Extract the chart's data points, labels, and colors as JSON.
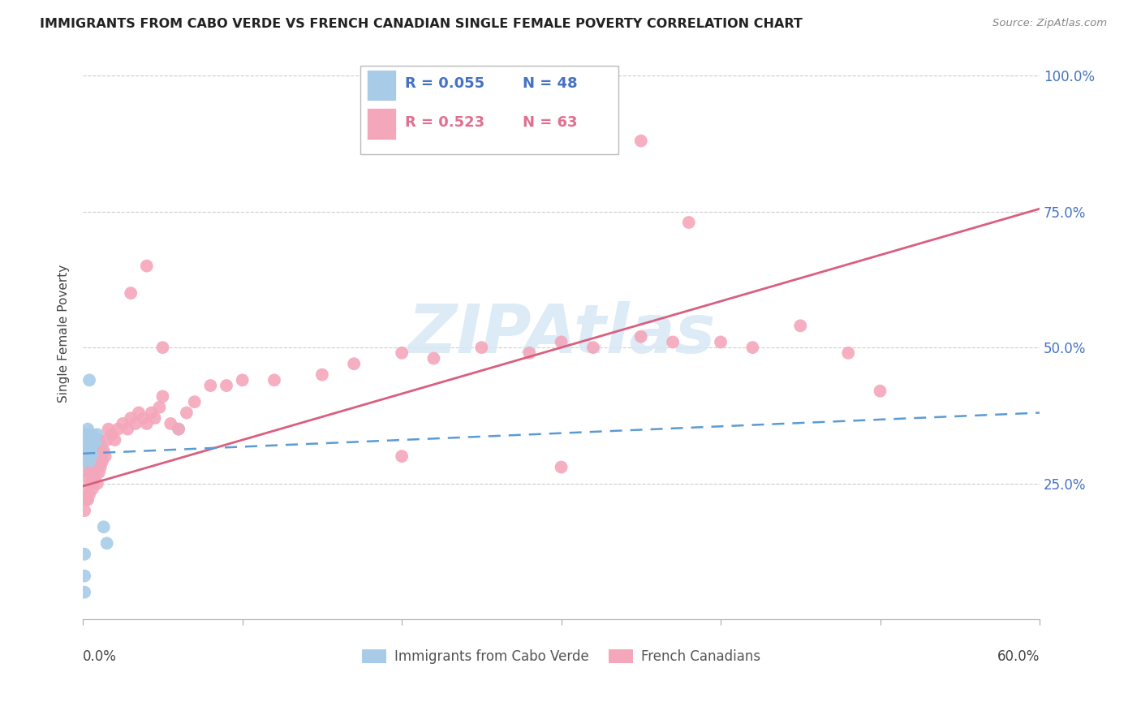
{
  "title": "IMMIGRANTS FROM CABO VERDE VS FRENCH CANADIAN SINGLE FEMALE POVERTY CORRELATION CHART",
  "source": "Source: ZipAtlas.com",
  "ylabel": "Single Female Poverty",
  "xmin": 0.0,
  "xmax": 0.6,
  "ymin": 0.0,
  "ymax": 1.05,
  "yticks": [
    0.0,
    0.25,
    0.5,
    0.75,
    1.0
  ],
  "ytick_labels": [
    "",
    "25.0%",
    "50.0%",
    "75.0%",
    "100.0%"
  ],
  "legend_blue_r": "R = 0.055",
  "legend_blue_n": "N = 48",
  "legend_pink_r": "R = 0.523",
  "legend_pink_n": "N = 63",
  "blue_scatter_color": "#a8cce8",
  "pink_scatter_color": "#f4a7bb",
  "blue_line_color": "#5b9bd5",
  "pink_line_color": "#d95f7f",
  "blue_legend_color": "#a8cce8",
  "pink_legend_color": "#f4a7bb",
  "grid_color": "#cccccc",
  "watermark_color": "#d6e8f5",
  "blue_x": [
    0.001,
    0.001,
    0.001,
    0.001,
    0.002,
    0.002,
    0.002,
    0.002,
    0.002,
    0.002,
    0.003,
    0.003,
    0.003,
    0.003,
    0.003,
    0.003,
    0.003,
    0.004,
    0.004,
    0.004,
    0.004,
    0.004,
    0.005,
    0.005,
    0.005,
    0.005,
    0.005,
    0.006,
    0.006,
    0.006,
    0.006,
    0.006,
    0.007,
    0.007,
    0.007,
    0.008,
    0.008,
    0.009,
    0.009,
    0.01,
    0.01,
    0.01,
    0.011,
    0.011,
    0.012,
    0.013,
    0.015,
    0.06
  ],
  "blue_y": [
    0.05,
    0.08,
    0.12,
    0.3,
    0.29,
    0.3,
    0.31,
    0.32,
    0.33,
    0.34,
    0.28,
    0.3,
    0.31,
    0.32,
    0.33,
    0.34,
    0.35,
    0.29,
    0.3,
    0.31,
    0.32,
    0.44,
    0.27,
    0.29,
    0.3,
    0.31,
    0.33,
    0.28,
    0.3,
    0.31,
    0.32,
    0.34,
    0.3,
    0.31,
    0.32,
    0.3,
    0.31,
    0.32,
    0.34,
    0.29,
    0.31,
    0.33,
    0.3,
    0.32,
    0.31,
    0.17,
    0.14,
    0.35
  ],
  "pink_x": [
    0.001,
    0.002,
    0.002,
    0.003,
    0.003,
    0.004,
    0.004,
    0.005,
    0.006,
    0.007,
    0.008,
    0.009,
    0.01,
    0.011,
    0.012,
    0.013,
    0.014,
    0.015,
    0.016,
    0.018,
    0.02,
    0.022,
    0.025,
    0.028,
    0.03,
    0.033,
    0.035,
    0.038,
    0.04,
    0.043,
    0.045,
    0.048,
    0.05,
    0.055,
    0.06,
    0.065,
    0.07,
    0.08,
    0.09,
    0.1,
    0.12,
    0.15,
    0.17,
    0.2,
    0.22,
    0.25,
    0.28,
    0.3,
    0.32,
    0.35,
    0.37,
    0.4,
    0.42,
    0.45,
    0.48,
    0.5,
    0.03,
    0.04,
    0.05,
    0.2,
    0.3,
    0.38,
    0.35
  ],
  "pink_y": [
    0.2,
    0.22,
    0.24,
    0.22,
    0.26,
    0.23,
    0.27,
    0.25,
    0.24,
    0.26,
    0.27,
    0.25,
    0.27,
    0.28,
    0.29,
    0.31,
    0.3,
    0.33,
    0.35,
    0.34,
    0.33,
    0.35,
    0.36,
    0.35,
    0.37,
    0.36,
    0.38,
    0.37,
    0.36,
    0.38,
    0.37,
    0.39,
    0.41,
    0.36,
    0.35,
    0.38,
    0.4,
    0.43,
    0.43,
    0.44,
    0.44,
    0.45,
    0.47,
    0.49,
    0.48,
    0.5,
    0.49,
    0.51,
    0.5,
    0.52,
    0.51,
    0.51,
    0.5,
    0.54,
    0.49,
    0.42,
    0.6,
    0.65,
    0.5,
    0.3,
    0.28,
    0.73,
    0.88
  ],
  "pink_line_x0": 0.0,
  "pink_line_y0": 0.245,
  "pink_line_x1": 0.6,
  "pink_line_y1": 0.755,
  "blue_line_x0": 0.0,
  "blue_line_y0": 0.305,
  "blue_line_x1": 0.6,
  "blue_line_y1": 0.38
}
